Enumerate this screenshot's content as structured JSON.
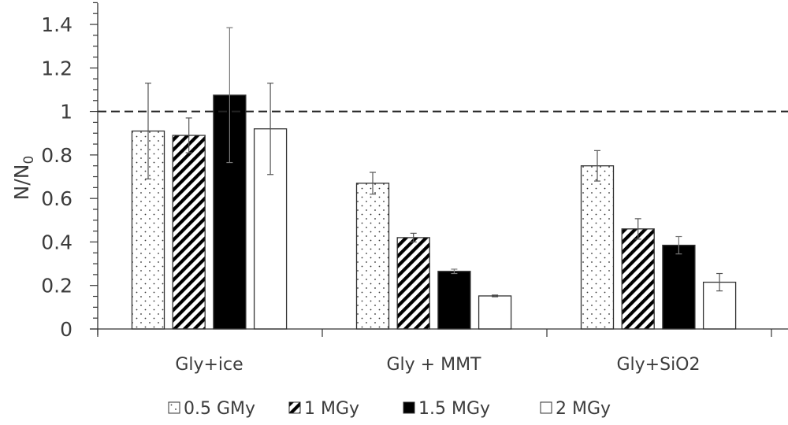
{
  "chart_data": {
    "type": "bar",
    "title": "",
    "xlabel": "",
    "ylabel": "N/N",
    "ylabel_subscript": "0",
    "ylim": [
      0,
      1.4
    ],
    "yticks": [
      "0",
      "0.2",
      "0.4",
      "0.6",
      "0.8",
      "1",
      "1.2",
      "1.4"
    ],
    "ytick_values": [
      0,
      0.2,
      0.4,
      0.6,
      0.8,
      1,
      1.2,
      1.4
    ],
    "minor_tick_step": 0.05,
    "grid": false,
    "reference_line": {
      "y": 1,
      "style": "dashed"
    },
    "legend_position": "bottom",
    "categories": [
      "Gly+ice",
      "Gly + MMT",
      "Gly+SiO2"
    ],
    "series": [
      {
        "name": "0.5 GMy",
        "pattern": "dots",
        "values": [
          0.91,
          0.67,
          0.75
        ],
        "errors": [
          0.22,
          0.05,
          0.07
        ]
      },
      {
        "name": "1 MGy",
        "pattern": "diagonal-stripes",
        "values": [
          0.89,
          0.42,
          0.46
        ],
        "errors": [
          0.08,
          0.02,
          0.047
        ]
      },
      {
        "name": "1.5 MGy",
        "pattern": "solid-black",
        "values": [
          1.075,
          0.265,
          0.385
        ],
        "errors": [
          0.31,
          0.01,
          0.04
        ]
      },
      {
        "name": "2 MGy",
        "pattern": "white",
        "values": [
          0.92,
          0.152,
          0.215
        ],
        "errors": [
          0.21,
          0.004,
          0.04
        ]
      }
    ],
    "colors": {
      "text": "#3c3c3c",
      "axis": "#333333",
      "bar_outline": "#333333",
      "solid": "#000000"
    }
  }
}
